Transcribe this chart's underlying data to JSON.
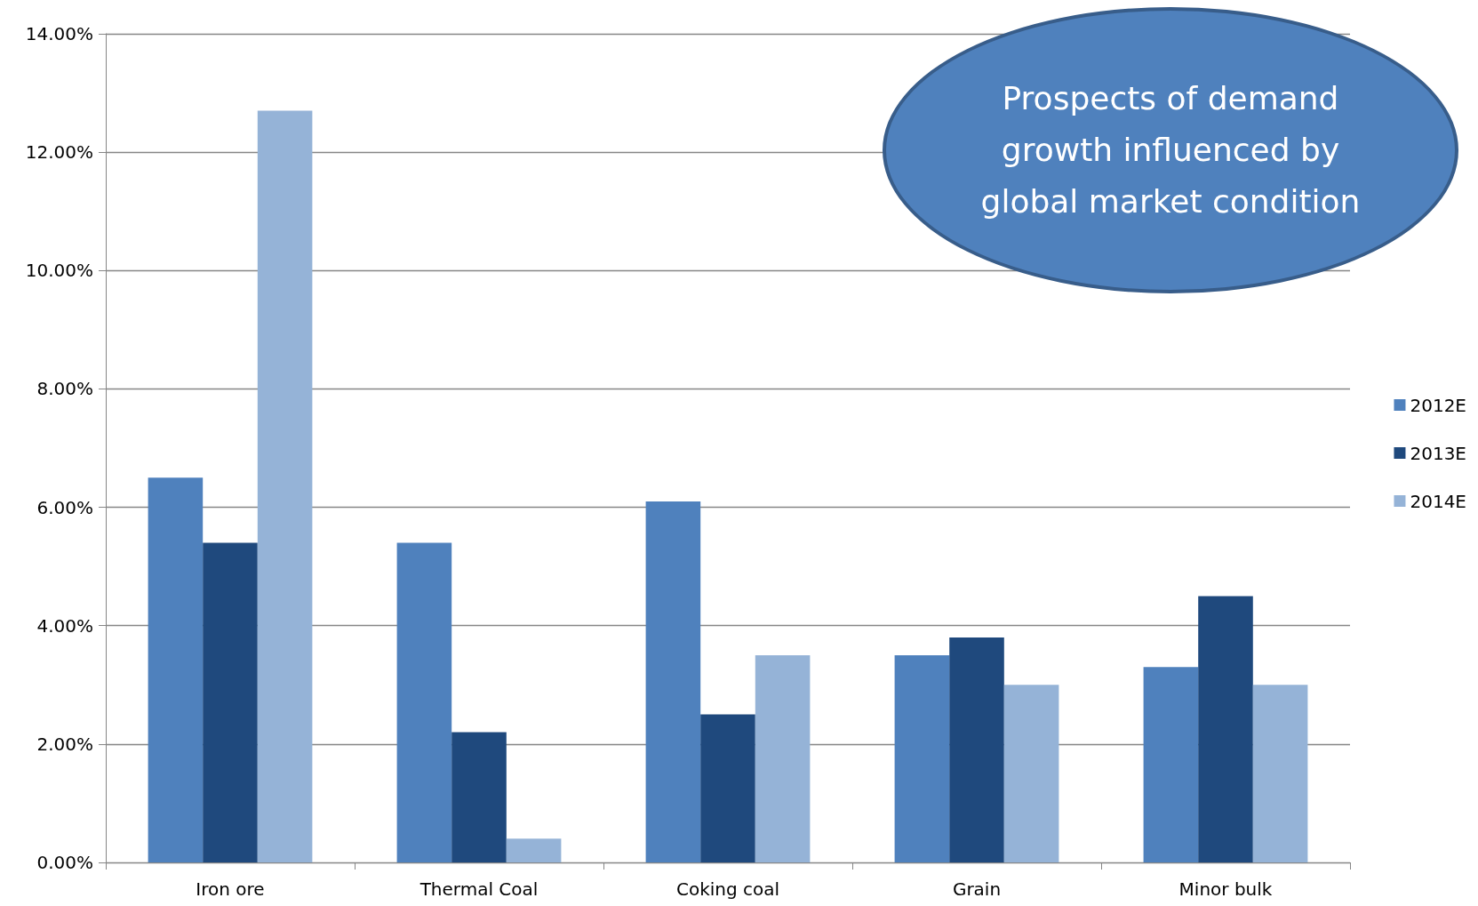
{
  "chart_data": {
    "type": "bar",
    "categories": [
      "Iron ore",
      "Thermal Coal",
      "Coking coal",
      "Grain",
      "Minor bulk"
    ],
    "series": [
      {
        "name": "2012E",
        "color": "#4f81bd",
        "values": [
          6.5,
          5.4,
          6.1,
          3.5,
          3.3
        ]
      },
      {
        "name": "2013E",
        "color": "#1f497d",
        "values": [
          5.4,
          2.2,
          2.5,
          3.8,
          4.5
        ]
      },
      {
        "name": "2014E",
        "color": "#95b3d7",
        "values": [
          12.7,
          0.4,
          3.5,
          3.0,
          3.0
        ]
      }
    ],
    "ylim": [
      0,
      14
    ],
    "yticks": [
      {
        "value": 0,
        "label": "0.00%"
      },
      {
        "value": 2,
        "label": "2.00%"
      },
      {
        "value": 4,
        "label": "4.00%"
      },
      {
        "value": 6,
        "label": "6.00%"
      },
      {
        "value": 8,
        "label": "8.00%"
      },
      {
        "value": 10,
        "label": "10.00%"
      },
      {
        "value": 12,
        "label": "12.00%"
      },
      {
        "value": 14,
        "label": "14.00%"
      }
    ],
    "grid": "y",
    "legend": "right",
    "annotations": [
      "Prospects of demand growth influenced by global market condition"
    ]
  }
}
